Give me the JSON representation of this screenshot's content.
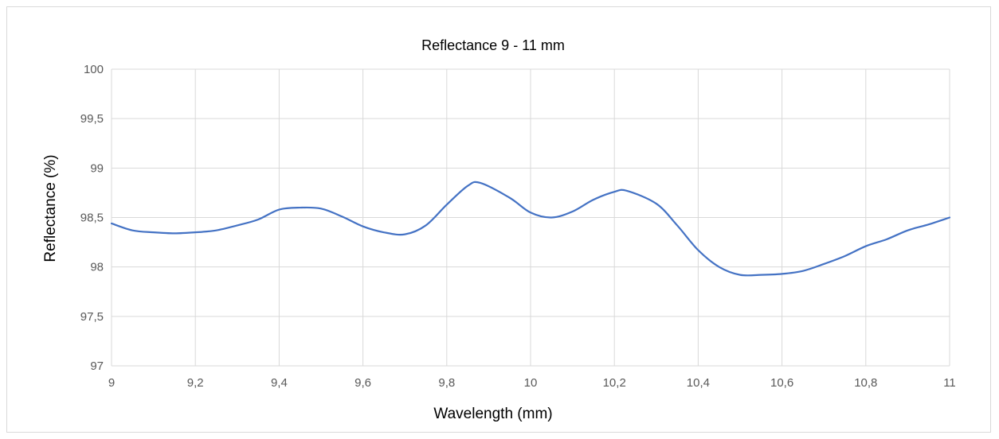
{
  "chart_data": {
    "type": "line",
    "title": "Reflectance 9 - 11 mm",
    "xlabel": "Wavelength (mm)",
    "ylabel": "Reflectance (%)",
    "xlim": [
      9,
      11
    ],
    "ylim": [
      97,
      100
    ],
    "x_ticks": [
      "9",
      "9,2",
      "9,4",
      "9,6",
      "9,8",
      "10",
      "10,2",
      "10,4",
      "10,6",
      "10,8",
      "11"
    ],
    "y_ticks": [
      "97",
      "97,5",
      "98",
      "98,5",
      "99",
      "99,5",
      "100"
    ],
    "grid": true,
    "legend": "none",
    "series": [
      {
        "color": "#4472c4",
        "x": [
          9.0,
          9.05,
          9.1,
          9.15,
          9.2,
          9.25,
          9.3,
          9.35,
          9.4,
          9.45,
          9.5,
          9.55,
          9.6,
          9.65,
          9.7,
          9.75,
          9.8,
          9.85,
          9.88,
          9.95,
          10.0,
          10.05,
          10.1,
          10.15,
          10.2,
          10.23,
          10.3,
          10.35,
          10.4,
          10.45,
          10.5,
          10.55,
          10.6,
          10.65,
          10.7,
          10.75,
          10.8,
          10.85,
          10.9,
          10.95,
          11.0
        ],
        "y": [
          98.44,
          98.37,
          98.35,
          98.34,
          98.35,
          98.37,
          98.42,
          98.48,
          98.58,
          98.6,
          98.59,
          98.51,
          98.41,
          98.35,
          98.33,
          98.42,
          98.63,
          98.82,
          98.85,
          98.7,
          98.55,
          98.5,
          98.56,
          98.68,
          98.76,
          98.77,
          98.64,
          98.42,
          98.17,
          98.0,
          97.92,
          97.92,
          97.93,
          97.96,
          98.03,
          98.11,
          98.21,
          98.28,
          98.37,
          98.43,
          98.5
        ]
      }
    ]
  }
}
